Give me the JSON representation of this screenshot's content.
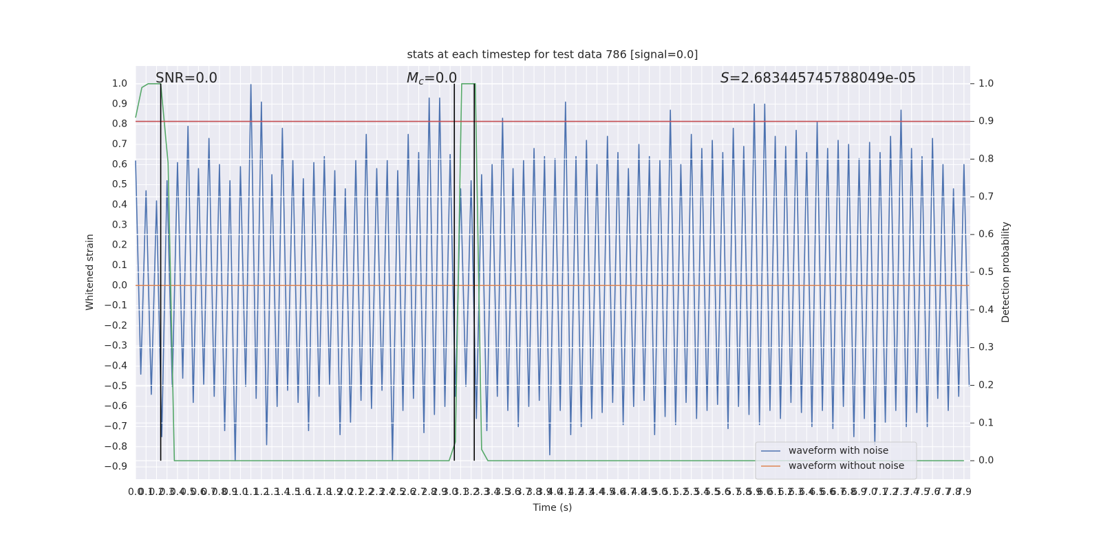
{
  "chart_data": {
    "type": "line",
    "title": "stats at each timestep for test data 786 [signal=0.0]",
    "xlabel": "Time (s)",
    "ylabel": "Whitened strain",
    "y2label": "Detection probability",
    "xlim": [
      0,
      7.96
    ],
    "ylim": [
      -0.961,
      1.089
    ],
    "y2lim": [
      -0.049,
      1.047
    ],
    "grid": true,
    "legend": "lower right",
    "xticks": [
      {
        "value": 0,
        "label": "0.0"
      },
      0.1,
      0.2,
      0.3,
      0.4,
      0.5,
      0.6,
      0.7,
      0.8,
      0.9,
      {
        "value": 1,
        "label": "1.0"
      },
      1.1,
      1.2,
      1.3,
      1.4,
      1.5,
      1.6,
      1.7,
      1.8,
      1.9,
      {
        "value": 2,
        "label": "2.0"
      },
      2.1,
      2.2,
      2.3,
      2.4,
      2.5,
      2.6,
      2.7,
      2.8,
      2.9,
      {
        "value": 3,
        "label": "3.0"
      },
      3.1,
      3.2,
      3.3,
      3.4,
      3.5,
      3.6,
      3.7,
      3.8,
      3.9,
      {
        "value": 4,
        "label": "4.0"
      },
      4.1,
      4.2,
      4.3,
      4.4,
      4.5,
      4.6,
      4.7,
      4.8,
      4.9,
      {
        "value": 5,
        "label": "5.0"
      },
      5.1,
      5.2,
      5.3,
      5.4,
      5.5,
      5.6,
      5.7,
      5.8,
      5.9,
      {
        "value": 6,
        "label": "6.0"
      },
      6.1,
      6.2,
      6.3,
      6.4,
      6.5,
      6.6,
      6.7,
      6.8,
      6.9,
      {
        "value": 7,
        "label": "7.0"
      },
      7.1,
      7.2,
      7.3,
      7.4,
      7.5,
      7.6,
      7.7,
      7.8,
      7.9
    ],
    "yticks": [
      {
        "value": -0.9,
        "label": "−0.9"
      },
      {
        "value": -0.8,
        "label": "−0.8"
      },
      {
        "value": -0.7,
        "label": "−0.7"
      },
      {
        "value": -0.6,
        "label": "−0.6"
      },
      {
        "value": -0.5,
        "label": "−0.5"
      },
      {
        "value": -0.4,
        "label": "−0.4"
      },
      {
        "value": -0.3,
        "label": "−0.3"
      },
      {
        "value": -0.2,
        "label": "−0.2"
      },
      {
        "value": -0.1,
        "label": "−0.1"
      },
      {
        "value": 0,
        "label": "0.0"
      },
      0.1,
      0.2,
      0.3,
      0.4,
      0.5,
      0.6,
      0.7,
      0.8,
      0.9,
      {
        "value": 1,
        "label": "1.0"
      }
    ],
    "y2ticks": [
      {
        "value": 0,
        "label": "0.0"
      },
      0.1,
      0.2,
      0.3,
      0.4,
      0.5,
      0.6,
      0.7,
      0.8,
      0.9,
      {
        "value": 1,
        "label": "1.0"
      }
    ],
    "series": [
      {
        "name": "waveform with noise",
        "color": "#4c72b0",
        "axis": "y",
        "x": [
          0,
          0.05,
          0.1,
          0.15,
          0.2,
          0.25,
          0.3,
          0.35,
          0.4,
          0.45,
          0.5,
          0.55,
          0.6,
          0.65,
          0.7,
          0.75,
          0.8,
          0.85,
          0.9,
          0.95,
          1,
          1.05,
          1.1,
          1.15,
          1.2,
          1.25,
          1.3,
          1.35,
          1.4,
          1.45,
          1.5,
          1.55,
          1.6,
          1.65,
          1.7,
          1.75,
          1.8,
          1.85,
          1.9,
          1.95,
          2,
          2.05,
          2.1,
          2.15,
          2.2,
          2.25,
          2.3,
          2.35,
          2.4,
          2.45,
          2.5,
          2.55,
          2.6,
          2.65,
          2.7,
          2.75,
          2.8,
          2.85,
          2.9,
          2.95,
          3,
          3.05,
          3.1,
          3.15,
          3.2,
          3.25,
          3.3,
          3.35,
          3.4,
          3.45,
          3.5,
          3.55,
          3.6,
          3.65,
          3.7,
          3.75,
          3.8,
          3.85,
          3.9,
          3.95,
          4,
          4.05,
          4.1,
          4.15,
          4.2,
          4.25,
          4.3,
          4.35,
          4.4,
          4.45,
          4.5,
          4.55,
          4.6,
          4.65,
          4.7,
          4.75,
          4.8,
          4.85,
          4.9,
          4.95,
          5,
          5.05,
          5.1,
          5.15,
          5.2,
          5.25,
          5.3,
          5.35,
          5.4,
          5.45,
          5.5,
          5.55,
          5.6,
          5.65,
          5.7,
          5.75,
          5.8,
          5.85,
          5.9,
          5.95,
          6,
          6.05,
          6.1,
          6.15,
          6.2,
          6.25,
          6.3,
          6.35,
          6.4,
          6.45,
          6.5,
          6.55,
          6.6,
          6.65,
          6.7,
          6.75,
          6.8,
          6.85,
          6.9,
          6.95,
          7,
          7.05,
          7.1,
          7.15,
          7.2,
          7.25,
          7.3,
          7.35,
          7.4,
          7.45,
          7.5,
          7.55,
          7.6,
          7.65,
          7.7,
          7.75,
          7.8,
          7.85,
          7.9,
          7.95
        ],
        "values": [
          0.62,
          -0.44,
          0.47,
          -0.54,
          0.42,
          -0.75,
          0.52,
          -0.5,
          0.61,
          -0.46,
          0.79,
          -0.58,
          0.58,
          -0.49,
          0.73,
          -0.55,
          0.6,
          -0.72,
          0.52,
          -0.87,
          0.59,
          -0.5,
          1.0,
          -0.56,
          0.91,
          -0.79,
          0.55,
          -0.6,
          0.78,
          -0.52,
          0.62,
          -0.58,
          0.53,
          -0.72,
          0.61,
          -0.55,
          0.64,
          -0.49,
          0.57,
          -0.74,
          0.48,
          -0.68,
          0.62,
          -0.57,
          0.75,
          -0.61,
          0.58,
          -0.52,
          0.62,
          -0.87,
          0.57,
          -0.62,
          0.75,
          -0.56,
          0.66,
          -0.73,
          0.93,
          -0.64,
          0.93,
          -0.6,
          0.65,
          -0.55,
          0.48,
          -0.5,
          0.52,
          -0.66,
          0.55,
          -0.72,
          0.6,
          -0.55,
          0.83,
          -0.62,
          0.58,
          -0.7,
          0.62,
          -0.6,
          0.68,
          -0.57,
          0.64,
          -0.84,
          0.63,
          -0.62,
          0.91,
          -0.74,
          0.64,
          -0.7,
          0.72,
          -0.66,
          0.6,
          -0.63,
          0.74,
          -0.58,
          0.66,
          -0.69,
          0.58,
          -0.6,
          0.7,
          -0.57,
          0.64,
          -0.74,
          0.62,
          -0.65,
          0.87,
          -0.69,
          0.6,
          -0.58,
          0.75,
          -0.66,
          0.68,
          -0.62,
          0.72,
          -0.59,
          0.66,
          -0.71,
          0.78,
          -0.6,
          0.69,
          -0.64,
          0.9,
          -0.69,
          0.9,
          -0.62,
          0.74,
          -0.66,
          0.69,
          -0.58,
          0.77,
          -0.63,
          0.66,
          -0.7,
          0.81,
          -0.62,
          0.68,
          -0.71,
          0.72,
          -0.6,
          0.7,
          -0.75,
          0.63,
          -0.66,
          0.71,
          -0.79,
          0.66,
          -0.68,
          0.74,
          -0.62,
          0.87,
          -0.7,
          0.68,
          -0.63,
          0.64,
          -0.7,
          0.73,
          -0.56,
          0.6,
          -0.62,
          0.48,
          -0.55,
          0.6,
          -0.5
        ]
      },
      {
        "name": "waveform without noise",
        "color": "#dd8452",
        "axis": "y",
        "x": [
          0,
          7.95
        ],
        "values": [
          0.0,
          0.0
        ]
      },
      {
        "color": "#55a868",
        "axis": "y2",
        "x": [
          0,
          0.06,
          0.12,
          0.24,
          0.31,
          0.37,
          2.99,
          3.05,
          3.11,
          3.24,
          3.3,
          3.36,
          7.9
        ],
        "values": [
          0.91,
          0.99,
          1.0,
          1.0,
          0.79,
          0.0,
          0.0,
          0.05,
          1.0,
          1.0,
          0.03,
          0.0,
          0.0
        ]
      }
    ],
    "hline": {
      "y": 0.9,
      "axis": "y2",
      "color": "#c44e52"
    },
    "vlines": {
      "x": [
        0.24,
        3.04,
        3.23
      ],
      "ymin": 0.0,
      "ymax": 1.0,
      "axis": "y2",
      "color": "#000000"
    },
    "annotations": [
      {
        "text": "SNR=0.0"
      },
      {
        "symbol": "M",
        "subscript": "c",
        "text": "=0.0"
      },
      {
        "symbol": "S",
        "text": "=2.683445745788049e-05"
      }
    ]
  }
}
